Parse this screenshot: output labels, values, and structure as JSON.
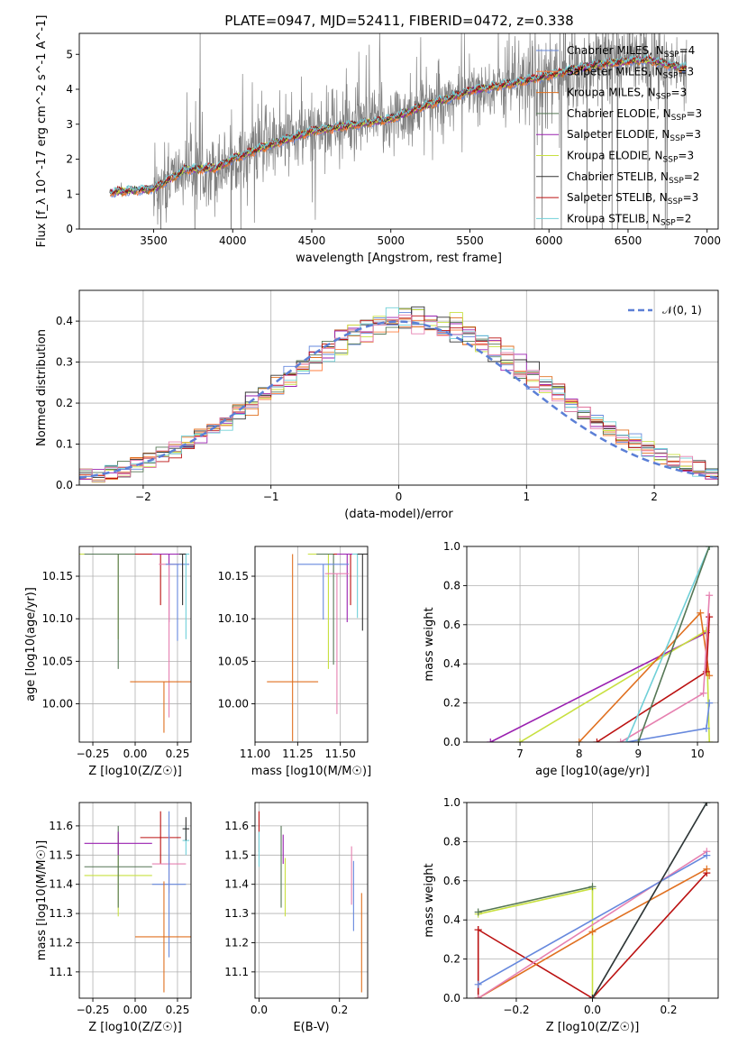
{
  "figure": {
    "title": "PLATE=0947, MJD=52411, FIBERID=0472, z=0.338"
  },
  "chart_data": [
    {
      "id": "spectrum",
      "type": "line",
      "xlabel": "wavelength [Angstrom, rest frame]",
      "ylabel": "Flux [f_λ 10^-17 erg cm^-2 s^-1 A^-1]",
      "xlim": [
        3030,
        7070
      ],
      "ylim": [
        0,
        5.6
      ],
      "xticks": [
        3500,
        4000,
        4500,
        5000,
        5500,
        6000,
        6500,
        7000
      ],
      "yticks": [
        0,
        1,
        2,
        3,
        4,
        5
      ],
      "grid": false,
      "legend_position": "top-right",
      "data_range": [
        3220,
        6870
      ],
      "continuum_anchors": [
        [
          3220,
          1.05
        ],
        [
          3500,
          1.15
        ],
        [
          3700,
          1.7
        ],
        [
          3900,
          1.75
        ],
        [
          4000,
          2.0
        ],
        [
          4200,
          2.35
        ],
        [
          4500,
          2.8
        ],
        [
          4800,
          3.0
        ],
        [
          5000,
          3.15
        ],
        [
          5200,
          3.5
        ],
        [
          5500,
          3.95
        ],
        [
          5800,
          4.2
        ],
        [
          6000,
          4.4
        ],
        [
          6300,
          4.7
        ],
        [
          6600,
          4.85
        ],
        [
          6870,
          4.6
        ]
      ],
      "series": [
        {
          "name": "Chabrier MILES, N_SSP=4",
          "color": "#6688dd"
        },
        {
          "name": "Salpeter MILES, N_SSP=3",
          "color": "#ff7f3f"
        },
        {
          "name": "Kroupa MILES, N_SSP=3",
          "color": "#e07020"
        },
        {
          "name": "Chabrier ELODIE, N_SSP=3",
          "color": "#557755"
        },
        {
          "name": "Salpeter ELODIE, N_SSP=3",
          "color": "#9a20b0"
        },
        {
          "name": "Kroupa ELODIE, N_SSP=3",
          "color": "#c8e040"
        },
        {
          "name": "Chabrier STELIB, N_SSP=2",
          "color": "#333333"
        },
        {
          "name": "Salpeter STELIB, N_SSP=3",
          "color": "#bb1111"
        },
        {
          "name": "Kroupa STELIB, N_SSP=2",
          "color": "#70d0d8"
        }
      ],
      "data_color": "#808080"
    },
    {
      "id": "residuals",
      "type": "line",
      "xlabel": "(data-model)/error",
      "ylabel": "Normed distribution",
      "xlim": [
        -2.5,
        2.5
      ],
      "ylim": [
        0,
        0.475
      ],
      "xticks": [
        -2,
        -1,
        0,
        1,
        2
      ],
      "yticks": [
        0.0,
        0.1,
        0.2,
        0.3,
        0.4
      ],
      "grid": true,
      "legend_position": "top-right",
      "reference": {
        "name": "𝒩(0, 1)",
        "mean": 0,
        "sigma": 1,
        "color": "#5b7fd6"
      },
      "bin_width": 0.1,
      "histogram_colors": [
        "#6688dd",
        "#ff7f3f",
        "#e07020",
        "#557755",
        "#9a20b0",
        "#c8e040",
        "#333333",
        "#bb1111",
        "#70d0d8",
        "#e680b0"
      ]
    },
    {
      "id": "age-vs-Z",
      "type": "scatter",
      "xlabel": "Z [log10(Z/Z☉)]",
      "ylabel": "age  [log10(age/yr)]",
      "xlim": [
        -0.33,
        0.33
      ],
      "ylim": [
        9.955,
        10.185
      ],
      "xticks": [
        -0.25,
        0.0,
        0.25
      ],
      "yticks": [
        10.0,
        10.05,
        10.1,
        10.15
      ],
      "grid": true,
      "points": [
        {
          "x": -0.1,
          "y": 10.176,
          "xerr": 0.24,
          "yerr": [
            0.1,
            0.0
          ],
          "color": "#c8e040"
        },
        {
          "x": -0.1,
          "y": 10.176,
          "xerr": 0.2,
          "yerr": [
            0.135,
            0.0
          ],
          "color": "#557755"
        },
        {
          "x": 0.15,
          "y": 10.176,
          "xerr": 0.15,
          "yerr": [
            0.06,
            0.0
          ],
          "color": "#bb1111"
        },
        {
          "x": 0.2,
          "y": 10.176,
          "xerr": 0.1,
          "yerr": [
            0.08,
            0.0
          ],
          "color": "#9a20b0"
        },
        {
          "x": 0.2,
          "y": 10.164,
          "xerr": 0.06,
          "yerr": [
            0.18,
            0.0
          ],
          "color": "#e680b0"
        },
        {
          "x": 0.25,
          "y": 10.164,
          "xerr": 0.07,
          "yerr": [
            0.09,
            0.0
          ],
          "color": "#6688dd"
        },
        {
          "x": 0.3,
          "y": 10.176,
          "xerr": 0.02,
          "yerr": [
            0.1,
            0.0
          ],
          "color": "#70d0d8"
        },
        {
          "x": 0.28,
          "y": 10.176,
          "xerr": 0.02,
          "yerr": [
            0.06,
            0.0
          ],
          "color": "#333333"
        },
        {
          "x": 0.17,
          "y": 10.026,
          "xerr": 0.2,
          "yerr": [
            0.06,
            0.0
          ],
          "color": "#e07020"
        }
      ]
    },
    {
      "id": "age-vs-mass",
      "type": "scatter",
      "xlabel": "mass [log10(M/M☉)]",
      "ylabel": "",
      "xlim": [
        11.0,
        11.66
      ],
      "ylim": [
        9.955,
        10.185
      ],
      "xticks": [
        11.0,
        11.25,
        11.5
      ],
      "yticks": [
        10.0,
        10.05,
        10.1,
        10.15
      ],
      "grid": true,
      "points": [
        {
          "x": 11.43,
          "y": 10.176,
          "xerr": 0.12,
          "yerr": [
            0.135,
            0.0
          ],
          "color": "#c8e040"
        },
        {
          "x": 11.46,
          "y": 10.176,
          "xerr": 0.1,
          "yerr": [
            0.13,
            0.0
          ],
          "color": "#557755"
        },
        {
          "x": 11.56,
          "y": 10.176,
          "xerr": 0.1,
          "yerr": [
            0.06,
            0.0
          ],
          "color": "#bb1111"
        },
        {
          "x": 11.54,
          "y": 10.176,
          "xerr": 0.06,
          "yerr": [
            0.08,
            0.0
          ],
          "color": "#9a20b0"
        },
        {
          "x": 11.48,
          "y": 10.153,
          "xerr": 0.07,
          "yerr": [
            0.165,
            0.0
          ],
          "color": "#e680b0"
        },
        {
          "x": 11.4,
          "y": 10.164,
          "xerr": 0.15,
          "yerr": [
            0.065,
            0.0
          ],
          "color": "#6688dd"
        },
        {
          "x": 11.6,
          "y": 10.176,
          "xerr": 0.03,
          "yerr": [
            0.075,
            0.0
          ],
          "color": "#70d0d8"
        },
        {
          "x": 11.63,
          "y": 10.176,
          "xerr": 0.03,
          "yerr": [
            0.09,
            0.0
          ],
          "color": "#333333"
        },
        {
          "x": 11.22,
          "y": 10.026,
          "xerr": 0.15,
          "yerr": [
            0.07,
            0.15
          ],
          "color": "#e07020"
        }
      ]
    },
    {
      "id": "weight-vs-age",
      "type": "line",
      "xlabel": "age  [log10(age/yr)]",
      "ylabel": "mass weight",
      "xlim": [
        6.1,
        10.35
      ],
      "ylim": [
        0,
        1.0
      ],
      "xticks": [
        7,
        8,
        9,
        10
      ],
      "yticks": [
        0.0,
        0.2,
        0.4,
        0.6,
        0.8,
        1.0
      ],
      "grid": true,
      "series": [
        {
          "color": "#9a20b0",
          "points": [
            [
              6.5,
              0.0
            ],
            [
              10.15,
              0.56
            ]
          ]
        },
        {
          "color": "#c8e040",
          "points": [
            [
              7.0,
              0.0
            ],
            [
              10.15,
              0.57
            ],
            [
              10.2,
              0.0
            ]
          ]
        },
        {
          "color": "#e07020",
          "points": [
            [
              8.0,
              0.0
            ],
            [
              10.05,
              0.66
            ],
            [
              10.2,
              0.34
            ]
          ]
        },
        {
          "color": "#bb1111",
          "points": [
            [
              8.3,
              0.0
            ],
            [
              10.15,
              0.36
            ],
            [
              10.2,
              0.64
            ]
          ]
        },
        {
          "color": "#e680b0",
          "points": [
            [
              8.7,
              0.0
            ],
            [
              10.1,
              0.25
            ],
            [
              10.2,
              0.75
            ]
          ]
        },
        {
          "color": "#6688dd",
          "points": [
            [
              8.8,
              0.0
            ],
            [
              10.15,
              0.07
            ],
            [
              10.2,
              0.2
            ]
          ]
        },
        {
          "color": "#70d0d8",
          "points": [
            [
              8.8,
              0.0
            ],
            [
              10.2,
              1.0
            ]
          ]
        },
        {
          "color": "#557755",
          "points": [
            [
              9.0,
              0.0
            ],
            [
              10.2,
              1.0
            ]
          ]
        }
      ]
    },
    {
      "id": "mass-vs-Z",
      "type": "scatter",
      "xlabel": "Z [log10(Z/Z☉)]",
      "ylabel": "mass [log10(M/M☉)]",
      "xlim": [
        -0.33,
        0.33
      ],
      "ylim": [
        11.01,
        11.68
      ],
      "xticks": [
        -0.25,
        0.0,
        0.25
      ],
      "yticks": [
        11.1,
        11.2,
        11.3,
        11.4,
        11.5,
        11.6
      ],
      "grid": true,
      "points": [
        {
          "x": -0.1,
          "y": 11.43,
          "xerr": 0.2,
          "yerr": 0.14,
          "color": "#c8e040"
        },
        {
          "x": -0.1,
          "y": 11.46,
          "xerr": 0.2,
          "yerr": 0.14,
          "color": "#557755"
        },
        {
          "x": -0.1,
          "y": 11.54,
          "xerr": 0.2,
          "yerr": 0.04,
          "color": "#9a20b0"
        },
        {
          "x": 0.15,
          "y": 11.56,
          "xerr": 0.12,
          "yerr": 0.09,
          "color": "#bb1111"
        },
        {
          "x": 0.2,
          "y": 11.47,
          "xerr": 0.1,
          "yerr": 0.1,
          "color": "#e680b0"
        },
        {
          "x": 0.2,
          "y": 11.4,
          "xerr": 0.1,
          "yerr": 0.25,
          "color": "#6688dd"
        },
        {
          "x": 0.3,
          "y": 11.55,
          "xerr": 0.02,
          "yerr": 0.05,
          "color": "#70d0d8"
        },
        {
          "x": 0.3,
          "y": 11.59,
          "xerr": 0.02,
          "yerr": 0.04,
          "color": "#333333"
        },
        {
          "x": 0.17,
          "y": 11.22,
          "xerr": 0.17,
          "yerr": 0.19,
          "color": "#e07020"
        }
      ]
    },
    {
      "id": "mass-vs-ebv",
      "type": "scatter",
      "xlabel": "E(B-V)",
      "ylabel": "",
      "xlim": [
        -0.01,
        0.27
      ],
      "ylim": [
        11.01,
        11.68
      ],
      "xticks": [
        0.0,
        0.2
      ],
      "yticks": [
        11.1,
        11.2,
        11.3,
        11.4,
        11.5,
        11.6
      ],
      "grid": true,
      "points": [
        {
          "x": 0.0,
          "y": 11.58,
          "yerr": 0.07,
          "color": "#bb1111"
        },
        {
          "x": 0.0,
          "y": 11.52,
          "yerr": 0.06,
          "color": "#70d0d8"
        },
        {
          "x": 0.055,
          "y": 11.46,
          "yerr": 0.14,
          "color": "#557755"
        },
        {
          "x": 0.06,
          "y": 11.52,
          "yerr": 0.05,
          "color": "#9a20b0"
        },
        {
          "x": 0.065,
          "y": 11.39,
          "yerr": 0.1,
          "color": "#c8e040"
        },
        {
          "x": 0.23,
          "y": 11.43,
          "yerr": 0.1,
          "color": "#e680b0"
        },
        {
          "x": 0.235,
          "y": 11.36,
          "yerr": 0.12,
          "color": "#6688dd"
        },
        {
          "x": 0.255,
          "y": 11.2,
          "yerr": 0.17,
          "color": "#e07020"
        }
      ]
    },
    {
      "id": "weight-vs-Z",
      "type": "line",
      "xlabel": "Z [log10(Z/Z☉)]",
      "ylabel": "mass weight",
      "xlim": [
        -0.33,
        0.33
      ],
      "ylim": [
        0,
        1.0
      ],
      "xticks": [
        -0.2,
        0.0,
        0.2
      ],
      "yticks": [
        0.0,
        0.2,
        0.4,
        0.6,
        0.8,
        1.0
      ],
      "grid": true,
      "series": [
        {
          "color": "#c8e040",
          "points": [
            [
              -0.3,
              0.43
            ],
            [
              0.0,
              0.56
            ],
            [
              0.0,
              0.0
            ]
          ]
        },
        {
          "color": "#557755",
          "points": [
            [
              -0.3,
              0.44
            ],
            [
              0.0,
              0.57
            ]
          ]
        },
        {
          "color": "#bb1111",
          "points": [
            [
              -0.3,
              0.35
            ],
            [
              0.0,
              0.0
            ],
            [
              0.3,
              0.64
            ]
          ]
        },
        {
          "color": "#bb1111",
          "points": [
            [
              -0.3,
              0.35
            ],
            [
              -0.3,
              0.0
            ]
          ]
        },
        {
          "color": "#e07020",
          "points": [
            [
              -0.3,
              0.0
            ],
            [
              0.0,
              0.34
            ],
            [
              0.3,
              0.66
            ]
          ]
        },
        {
          "color": "#e680b0",
          "points": [
            [
              -0.3,
              0.0
            ],
            [
              0.3,
              0.75
            ]
          ]
        },
        {
          "color": "#6688dd",
          "points": [
            [
              -0.3,
              0.07
            ],
            [
              0.3,
              0.73
            ]
          ]
        },
        {
          "color": "#70d0d8",
          "points": [
            [
              0.0,
              0.0
            ],
            [
              0.3,
              1.0
            ]
          ]
        },
        {
          "color": "#333333",
          "points": [
            [
              0.0,
              0.0
            ],
            [
              0.3,
              1.0
            ]
          ]
        }
      ]
    }
  ]
}
